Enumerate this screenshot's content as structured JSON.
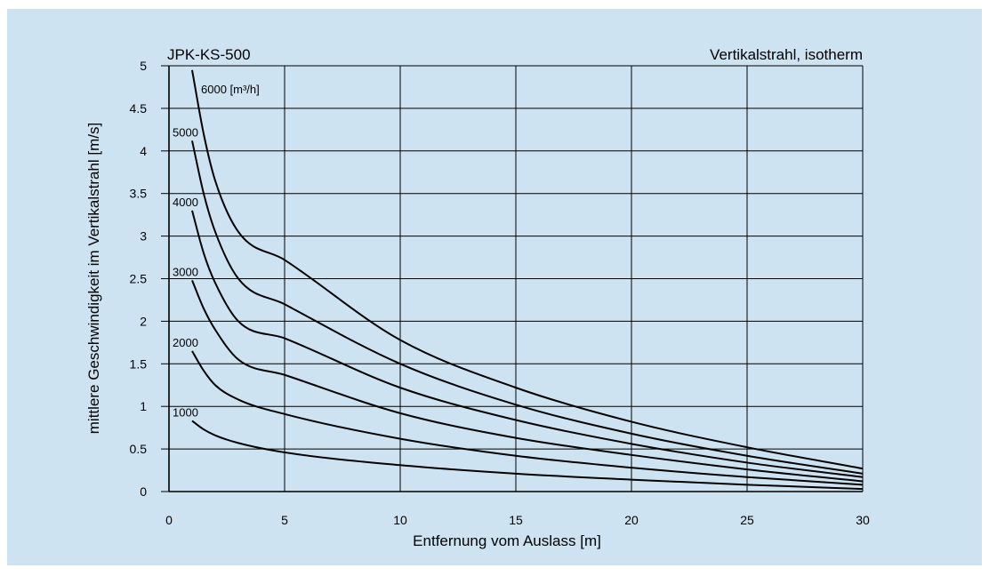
{
  "chart_data": {
    "type": "line",
    "title_left": "JPK-KS-500",
    "title_right": "Vertikalstrahl, isotherm",
    "xlabel": "Entfernung vom Auslass [m]",
    "ylabel": "mittlere Geschwindigkeit im Vertikalstrahl [m/s]",
    "xlim": [
      0,
      30
    ],
    "ylim": [
      0,
      5
    ],
    "xticks": [
      0,
      5,
      10,
      15,
      20,
      25,
      30
    ],
    "yticks": [
      0,
      0.5,
      1,
      1.5,
      2,
      2.5,
      3,
      3.5,
      4,
      4.5,
      5
    ],
    "ytick_labels": [
      "0",
      "0.5",
      "1",
      "1.5",
      "2",
      "2.5",
      "3",
      "3.5",
      "4",
      "4.5",
      "5"
    ],
    "grid": true,
    "series": [
      {
        "name": "6000 [m³/h]",
        "points": [
          [
            1,
            4.95
          ],
          [
            1.5,
            4.2
          ],
          [
            2,
            3.65
          ],
          [
            3,
            3.05
          ],
          [
            5,
            2.72
          ],
          [
            10,
            1.78
          ],
          [
            15,
            1.22
          ],
          [
            20,
            0.82
          ],
          [
            25,
            0.52
          ],
          [
            30,
            0.27
          ]
        ]
      },
      {
        "name": "5000",
        "points": [
          [
            1,
            4.12
          ],
          [
            1.5,
            3.5
          ],
          [
            2,
            3.05
          ],
          [
            3,
            2.5
          ],
          [
            5,
            2.2
          ],
          [
            10,
            1.5
          ],
          [
            15,
            1.02
          ],
          [
            20,
            0.68
          ],
          [
            25,
            0.42
          ],
          [
            30,
            0.21
          ]
        ]
      },
      {
        "name": "4000",
        "points": [
          [
            1,
            3.3
          ],
          [
            1.5,
            2.8
          ],
          [
            2,
            2.45
          ],
          [
            3,
            2.0
          ],
          [
            5,
            1.8
          ],
          [
            10,
            1.22
          ],
          [
            15,
            0.84
          ],
          [
            20,
            0.56
          ],
          [
            25,
            0.34
          ],
          [
            30,
            0.17
          ]
        ]
      },
      {
        "name": "3000",
        "points": [
          [
            1,
            2.48
          ],
          [
            1.5,
            2.15
          ],
          [
            2,
            1.9
          ],
          [
            3,
            1.55
          ],
          [
            5,
            1.37
          ],
          [
            10,
            0.92
          ],
          [
            15,
            0.63
          ],
          [
            20,
            0.43
          ],
          [
            25,
            0.26
          ],
          [
            30,
            0.12
          ]
        ]
      },
      {
        "name": "2000",
        "points": [
          [
            1,
            1.65
          ],
          [
            1.5,
            1.42
          ],
          [
            2,
            1.25
          ],
          [
            3,
            1.08
          ],
          [
            5,
            0.91
          ],
          [
            10,
            0.62
          ],
          [
            15,
            0.42
          ],
          [
            20,
            0.28
          ],
          [
            25,
            0.17
          ],
          [
            30,
            0.08
          ]
        ]
      },
      {
        "name": "1000",
        "points": [
          [
            1,
            0.83
          ],
          [
            1.5,
            0.73
          ],
          [
            2,
            0.66
          ],
          [
            3,
            0.57
          ],
          [
            5,
            0.46
          ],
          [
            10,
            0.31
          ],
          [
            15,
            0.21
          ],
          [
            20,
            0.14
          ],
          [
            25,
            0.08
          ],
          [
            30,
            0.03
          ]
        ]
      }
    ]
  }
}
